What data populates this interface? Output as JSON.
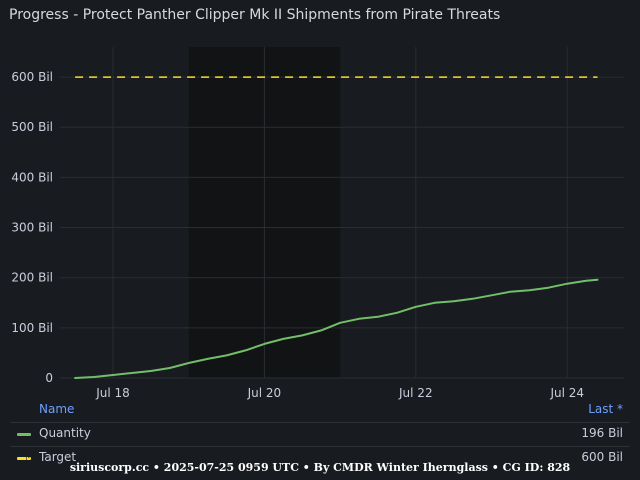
{
  "panel": {
    "title": "Progress - Protect Panther Clipper Mk II Shipments from Pirate Threats"
  },
  "chart_data": {
    "type": "line",
    "title": "Progress - Protect Panther Clipper Mk II Shipments from Pirate Threats",
    "xlabel": "",
    "ylabel": "",
    "x_unit": "day of July 2025",
    "x_ticks": [
      {
        "x": 18,
        "label": "Jul 18"
      },
      {
        "x": 20,
        "label": "Jul 20"
      },
      {
        "x": 22,
        "label": "Jul 22"
      },
      {
        "x": 24,
        "label": "Jul 24"
      }
    ],
    "y_ticks": [
      {
        "y": 0,
        "label": "0"
      },
      {
        "y": 100,
        "label": "100 Bil"
      },
      {
        "y": 200,
        "label": "200 Bil"
      },
      {
        "y": 300,
        "label": "300 Bil"
      },
      {
        "y": 400,
        "label": "400 Bil"
      },
      {
        "y": 500,
        "label": "500 Bil"
      },
      {
        "y": 600,
        "label": "600 Bil"
      }
    ],
    "xlim": [
      17.3,
      24.75
    ],
    "ylim": [
      0,
      660
    ],
    "grid": true,
    "shaded_x_range": [
      19.0,
      21.0
    ],
    "series": [
      {
        "name": "Quantity",
        "color": "#73bf69",
        "style": "solid",
        "x": [
          17.5,
          17.75,
          18.0,
          18.25,
          18.5,
          18.75,
          19.0,
          19.25,
          19.5,
          19.75,
          20.0,
          20.25,
          20.5,
          20.75,
          21.0,
          21.25,
          21.5,
          21.75,
          22.0,
          22.25,
          22.5,
          22.75,
          23.0,
          23.25,
          23.5,
          23.75,
          24.0,
          24.25,
          24.4
        ],
        "y": [
          0,
          2,
          6,
          10,
          14,
          20,
          30,
          38,
          45,
          55,
          68,
          78,
          85,
          95,
          110,
          118,
          122,
          130,
          142,
          150,
          153,
          158,
          165,
          172,
          175,
          180,
          188,
          194,
          196
        ]
      },
      {
        "name": "Target",
        "color": "#fade2a",
        "style": "dashed",
        "x": [
          17.5,
          24.4
        ],
        "y": [
          600,
          600
        ]
      }
    ],
    "legend": {
      "position": "bottom",
      "header_name": "Name",
      "header_value": "Last *",
      "rows": [
        {
          "name": "Quantity",
          "value": "196 Bil",
          "color": "#73bf69",
          "style": "solid"
        },
        {
          "name": "Target",
          "value": "600 Bil",
          "color": "#fade2a",
          "style": "dashed"
        }
      ]
    }
  },
  "footer": {
    "text": "siriuscorp.cc • 2025-07-25 0959 UTC • By CMDR Winter Iherngl​ass • CG ID: 828"
  }
}
